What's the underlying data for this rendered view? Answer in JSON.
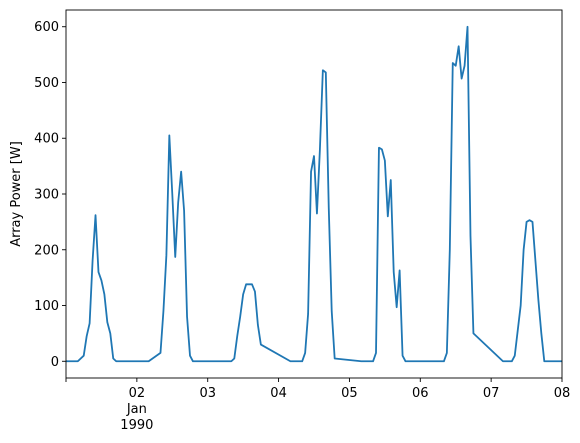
{
  "chart_data": {
    "type": "line",
    "title": "",
    "xlabel": "",
    "ylabel": "Array Power [W]",
    "xlim": [
      "1990-01-01 00:00",
      "1990-01-08 00:00"
    ],
    "ylim": [
      -30,
      630
    ],
    "grid": false,
    "yticks": [
      0,
      100,
      200,
      300,
      400,
      500,
      600
    ],
    "xticks": [
      {
        "x": "1990-01-01 00:00",
        "label": ""
      },
      {
        "x": "1990-01-02 00:00",
        "label": "02"
      },
      {
        "x": "1990-01-03 00:00",
        "label": "03"
      },
      {
        "x": "1990-01-04 00:00",
        "label": "04"
      },
      {
        "x": "1990-01-05 00:00",
        "label": "05"
      },
      {
        "x": "1990-01-06 00:00",
        "label": "06"
      },
      {
        "x": "1990-01-07 00:00",
        "label": "07"
      },
      {
        "x": "1990-01-08 00:00",
        "label": "08"
      }
    ],
    "xticklabel_extra": {
      "x": "1990-01-02 00:00",
      "line2": "Jan",
      "line3": "1990"
    },
    "series": [
      {
        "color": "#1f77b4",
        "x": [
          "1990-01-01 00:00",
          "1990-01-01 04:00",
          "1990-01-01 06:00",
          "1990-01-01 07:00",
          "1990-01-01 08:00",
          "1990-01-01 09:00",
          "1990-01-01 10:00",
          "1990-01-01 11:00",
          "1990-01-01 12:00",
          "1990-01-01 13:00",
          "1990-01-01 14:00",
          "1990-01-01 15:00",
          "1990-01-01 16:00",
          "1990-01-01 17:00",
          "1990-01-01 18:00",
          "1990-01-01 19:00",
          "1990-01-02 04:00",
          "1990-01-02 08:00",
          "1990-01-02 09:00",
          "1990-01-02 10:00",
          "1990-01-02 11:00",
          "1990-01-02 12:00",
          "1990-01-02 13:00",
          "1990-01-02 14:00",
          "1990-01-02 15:00",
          "1990-01-02 16:00",
          "1990-01-02 17:00",
          "1990-01-02 18:00",
          "1990-01-02 19:00",
          "1990-01-03 04:00",
          "1990-01-03 08:00",
          "1990-01-03 09:00",
          "1990-01-03 10:00",
          "1990-01-03 11:00",
          "1990-01-03 12:00",
          "1990-01-03 13:00",
          "1990-01-03 14:00",
          "1990-01-03 15:00",
          "1990-01-03 16:00",
          "1990-01-03 17:00",
          "1990-01-03 18:00",
          "1990-01-04 04:00",
          "1990-01-04 08:00",
          "1990-01-04 09:00",
          "1990-01-04 10:00",
          "1990-01-04 11:00",
          "1990-01-04 12:00",
          "1990-01-04 13:00",
          "1990-01-04 14:00",
          "1990-01-04 15:00",
          "1990-01-04 16:00",
          "1990-01-04 17:00",
          "1990-01-04 18:00",
          "1990-01-04 19:00",
          "1990-01-05 04:00",
          "1990-01-05 08:00",
          "1990-01-05 09:00",
          "1990-01-05 10:00",
          "1990-01-05 11:00",
          "1990-01-05 12:00",
          "1990-01-05 13:00",
          "1990-01-05 14:00",
          "1990-01-05 15:00",
          "1990-01-05 16:00",
          "1990-01-05 17:00",
          "1990-01-05 18:00",
          "1990-01-05 19:00",
          "1990-01-06 04:00",
          "1990-01-06 08:00",
          "1990-01-06 09:00",
          "1990-01-06 10:00",
          "1990-01-06 11:00",
          "1990-01-06 12:00",
          "1990-01-06 13:00",
          "1990-01-06 14:00",
          "1990-01-06 15:00",
          "1990-01-06 16:00",
          "1990-01-06 17:00",
          "1990-01-06 18:00",
          "1990-01-07 04:00",
          "1990-01-07 07:00",
          "1990-01-07 08:00",
          "1990-01-07 09:00",
          "1990-01-07 10:00",
          "1990-01-07 11:00",
          "1990-01-07 12:00",
          "1990-01-07 13:00",
          "1990-01-07 14:00",
          "1990-01-07 15:00",
          "1990-01-07 16:00",
          "1990-01-07 17:00",
          "1990-01-07 18:00",
          "1990-01-08 00:00"
        ],
        "y": [
          0,
          0,
          10,
          45,
          68,
          180,
          262,
          160,
          145,
          120,
          70,
          50,
          5,
          0,
          0,
          0,
          0,
          15,
          90,
          190,
          405,
          300,
          187,
          285,
          340,
          270,
          80,
          10,
          0,
          0,
          0,
          5,
          45,
          80,
          120,
          138,
          138,
          138,
          125,
          65,
          30,
          0,
          0,
          15,
          85,
          340,
          368,
          265,
          380,
          522,
          518,
          275,
          90,
          5,
          0,
          0,
          15,
          383,
          380,
          360,
          260,
          325,
          160,
          97,
          163,
          10,
          0,
          0,
          0,
          15,
          200,
          535,
          530,
          565,
          507,
          530,
          600,
          225,
          50,
          0,
          0,
          10,
          55,
          100,
          200,
          250,
          253,
          250,
          180,
          110,
          50,
          0,
          0
        ]
      }
    ]
  }
}
